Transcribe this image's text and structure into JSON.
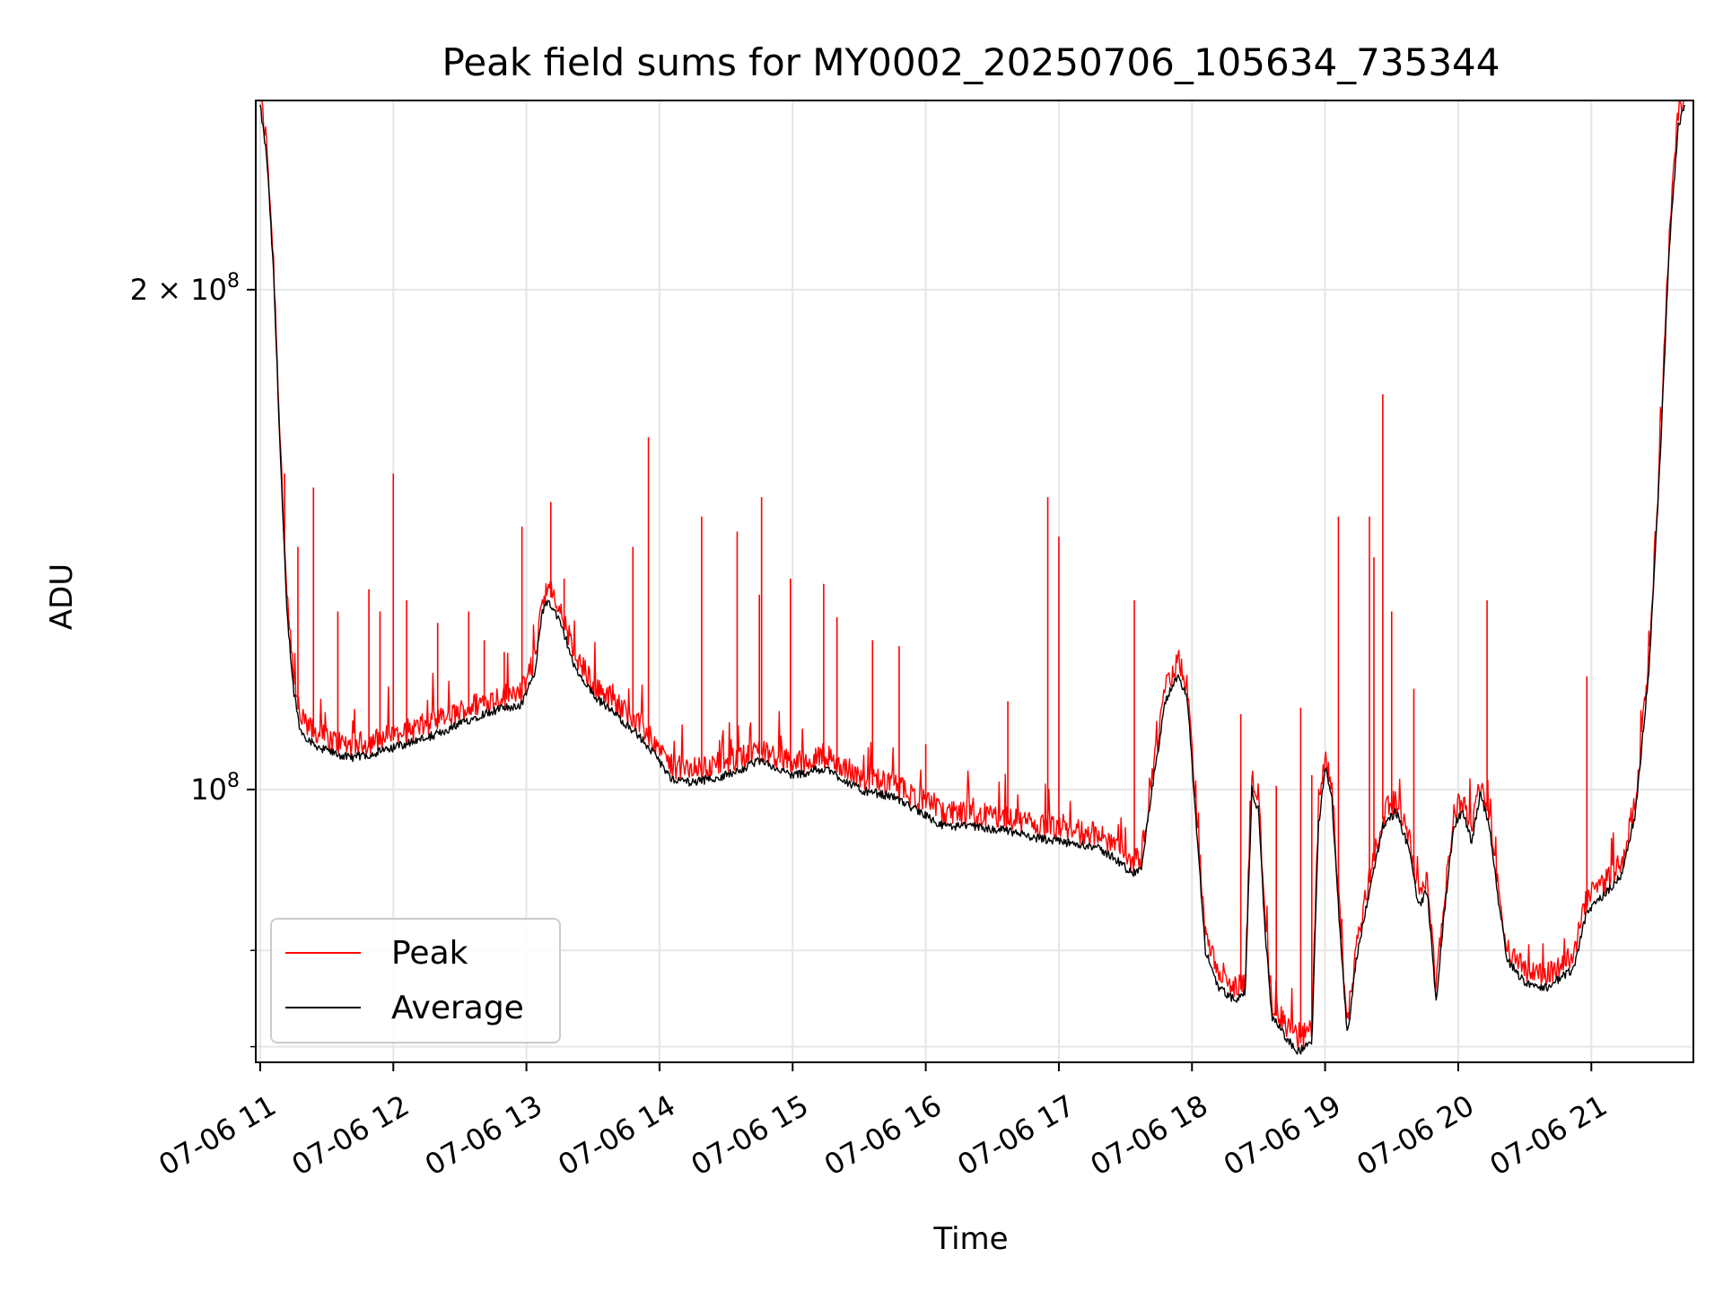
{
  "chart_data": {
    "type": "line",
    "title": "Peak field sums for MY0002_20250706_105634_735344",
    "xlabel": "Time",
    "ylabel": "ADU",
    "y_scale": "log",
    "ylim": [
      68500000,
      260000000
    ],
    "xlim": [
      "2025-07-06T10:58:00",
      "2025-07-06T21:46:00"
    ],
    "grid": true,
    "legend_position": "lower-left",
    "x_ticks": [
      {
        "t": "2025-07-06T11:00",
        "label": "07-06 11"
      },
      {
        "t": "2025-07-06T12:00",
        "label": "07-06 12"
      },
      {
        "t": "2025-07-06T13:00",
        "label": "07-06 13"
      },
      {
        "t": "2025-07-06T14:00",
        "label": "07-06 14"
      },
      {
        "t": "2025-07-06T15:00",
        "label": "07-06 15"
      },
      {
        "t": "2025-07-06T16:00",
        "label": "07-06 16"
      },
      {
        "t": "2025-07-06T17:00",
        "label": "07-06 17"
      },
      {
        "t": "2025-07-06T18:00",
        "label": "07-06 18"
      },
      {
        "t": "2025-07-06T19:00",
        "label": "07-06 19"
      },
      {
        "t": "2025-07-06T20:00",
        "label": "07-06 20"
      },
      {
        "t": "2025-07-06T21:00",
        "label": "07-06 21"
      }
    ],
    "y_major_ticks": [
      {
        "value": 100000000,
        "base": "10",
        "exp": "8"
      },
      {
        "value": 200000000,
        "base": "2 × 10",
        "exp": "8"
      }
    ],
    "y_minor_gridlines": [
      70000000,
      80000000
    ],
    "series": [
      {
        "name": "Average",
        "color": "#000000",
        "points": [
          [
            "2025-07-06T11:00",
            258000000
          ],
          [
            "2025-07-06T11:03",
            240000000
          ],
          [
            "2025-07-06T11:06",
            205000000
          ],
          [
            "2025-07-06T11:09",
            160000000
          ],
          [
            "2025-07-06T11:12",
            128000000
          ],
          [
            "2025-07-06T11:15",
            115000000
          ],
          [
            "2025-07-06T11:18",
            108500000
          ],
          [
            "2025-07-06T11:24",
            106500000
          ],
          [
            "2025-07-06T11:30",
            105500000
          ],
          [
            "2025-07-06T11:40",
            104500000
          ],
          [
            "2025-07-06T11:50",
            105000000
          ],
          [
            "2025-07-06T12:00",
            106000000
          ],
          [
            "2025-07-06T12:10",
            107000000
          ],
          [
            "2025-07-06T12:20",
            108000000
          ],
          [
            "2025-07-06T12:30",
            109500000
          ],
          [
            "2025-07-06T12:40",
            111000000
          ],
          [
            "2025-07-06T12:50",
            112000000
          ],
          [
            "2025-07-06T12:58",
            112500000
          ],
          [
            "2025-07-06T13:04",
            118000000
          ],
          [
            "2025-07-06T13:07",
            128000000
          ],
          [
            "2025-07-06T13:10",
            130000000
          ],
          [
            "2025-07-06T13:14",
            127000000
          ],
          [
            "2025-07-06T13:18",
            123000000
          ],
          [
            "2025-07-06T13:22",
            118000000
          ],
          [
            "2025-07-06T13:30",
            114000000
          ],
          [
            "2025-07-06T13:40",
            111000000
          ],
          [
            "2025-07-06T13:50",
            108000000
          ],
          [
            "2025-07-06T14:00",
            104000000
          ],
          [
            "2025-07-06T14:05",
            101500000
          ],
          [
            "2025-07-06T14:15",
            101000000
          ],
          [
            "2025-07-06T14:30",
            102000000
          ],
          [
            "2025-07-06T14:45",
            104000000
          ],
          [
            "2025-07-06T15:00",
            102000000
          ],
          [
            "2025-07-06T15:15",
            103000000
          ],
          [
            "2025-07-06T15:30",
            100000000
          ],
          [
            "2025-07-06T15:45",
            99000000
          ],
          [
            "2025-07-06T16:00",
            96500000
          ],
          [
            "2025-07-06T16:08",
            95000000
          ],
          [
            "2025-07-06T16:20",
            95000000
          ],
          [
            "2025-07-06T16:35",
            94500000
          ],
          [
            "2025-07-06T16:50",
            93500000
          ],
          [
            "2025-07-06T17:00",
            93000000
          ],
          [
            "2025-07-06T17:15",
            92500000
          ],
          [
            "2025-07-06T17:25",
            91000000
          ],
          [
            "2025-07-06T17:33",
            89000000
          ],
          [
            "2025-07-06T17:37",
            89500000
          ],
          [
            "2025-07-06T17:42",
            100000000
          ],
          [
            "2025-07-06T17:48",
            113000000
          ],
          [
            "2025-07-06T17:54",
            117500000
          ],
          [
            "2025-07-06T17:58",
            113000000
          ],
          [
            "2025-07-06T18:02",
            95000000
          ],
          [
            "2025-07-06T18:06",
            80000000
          ],
          [
            "2025-07-06T18:12",
            76000000
          ],
          [
            "2025-07-06T18:20",
            74500000
          ],
          [
            "2025-07-06T18:24",
            75500000
          ],
          [
            "2025-07-06T18:27",
            100000000
          ],
          [
            "2025-07-06T18:30",
            97000000
          ],
          [
            "2025-07-06T18:33",
            82000000
          ],
          [
            "2025-07-06T18:36",
            73000000
          ],
          [
            "2025-07-06T18:42",
            71000000
          ],
          [
            "2025-07-06T18:48",
            69500000
          ],
          [
            "2025-07-06T18:54",
            70500000
          ],
          [
            "2025-07-06T18:57",
            95000000
          ],
          [
            "2025-07-06T19:00",
            103000000
          ],
          [
            "2025-07-06T19:03",
            99000000
          ],
          [
            "2025-07-06T19:06",
            85000000
          ],
          [
            "2025-07-06T19:10",
            71000000
          ],
          [
            "2025-07-06T19:14",
            79000000
          ],
          [
            "2025-07-06T19:20",
            87000000
          ],
          [
            "2025-07-06T19:26",
            95000000
          ],
          [
            "2025-07-06T19:32",
            97000000
          ],
          [
            "2025-07-06T19:38",
            92000000
          ],
          [
            "2025-07-06T19:42",
            85000000
          ],
          [
            "2025-07-06T19:46",
            87000000
          ],
          [
            "2025-07-06T19:50",
            74500000
          ],
          [
            "2025-07-06T19:54",
            85000000
          ],
          [
            "2025-07-06T19:58",
            95000000
          ],
          [
            "2025-07-06T20:02",
            97000000
          ],
          [
            "2025-07-06T20:06",
            93000000
          ],
          [
            "2025-07-06T20:10",
            99500000
          ],
          [
            "2025-07-06T20:14",
            95000000
          ],
          [
            "2025-07-06T20:18",
            86000000
          ],
          [
            "2025-07-06T20:22",
            79000000
          ],
          [
            "2025-07-06T20:30",
            76500000
          ],
          [
            "2025-07-06T20:40",
            76000000
          ],
          [
            "2025-07-06T20:46",
            77000000
          ],
          [
            "2025-07-06T20:52",
            78000000
          ],
          [
            "2025-07-06T20:58",
            84500000
          ],
          [
            "2025-07-06T21:06",
            86500000
          ],
          [
            "2025-07-06T21:14",
            89000000
          ],
          [
            "2025-07-06T21:20",
            97000000
          ],
          [
            "2025-07-06T21:26",
            118000000
          ],
          [
            "2025-07-06T21:31",
            158000000
          ],
          [
            "2025-07-06T21:35",
            210000000
          ],
          [
            "2025-07-06T21:39",
            250000000
          ],
          [
            "2025-07-06T21:42",
            259000000
          ]
        ]
      },
      {
        "name": "Peak",
        "color": "#ff0000",
        "noise_fraction": 0.035,
        "spikes": [
          [
            "2025-07-06T11:11",
            155000000
          ],
          [
            "2025-07-06T11:17",
            140000000
          ],
          [
            "2025-07-06T11:24",
            152000000
          ],
          [
            "2025-07-06T11:35",
            128000000
          ],
          [
            "2025-07-06T11:49",
            132000000
          ],
          [
            "2025-07-06T11:54",
            128000000
          ],
          [
            "2025-07-06T12:00",
            155000000
          ],
          [
            "2025-07-06T12:06",
            130000000
          ],
          [
            "2025-07-06T12:20",
            126000000
          ],
          [
            "2025-07-06T12:34",
            128000000
          ],
          [
            "2025-07-06T12:41",
            123000000
          ],
          [
            "2025-07-06T12:50",
            121000000
          ],
          [
            "2025-07-06T12:58",
            144000000
          ],
          [
            "2025-07-06T13:11",
            149000000
          ],
          [
            "2025-07-06T13:17",
            134000000
          ],
          [
            "2025-07-06T13:48",
            140000000
          ],
          [
            "2025-07-06T13:55",
            163000000
          ],
          [
            "2025-07-06T14:19",
            146000000
          ],
          [
            "2025-07-06T14:35",
            143000000
          ],
          [
            "2025-07-06T14:45",
            131000000
          ],
          [
            "2025-07-06T14:46",
            150000000
          ],
          [
            "2025-07-06T14:59",
            134000000
          ],
          [
            "2025-07-06T15:14",
            133000000
          ],
          [
            "2025-07-06T15:20",
            127000000
          ],
          [
            "2025-07-06T15:36",
            123000000
          ],
          [
            "2025-07-06T15:48",
            122000000
          ],
          [
            "2025-07-06T16:00",
            106500000
          ],
          [
            "2025-07-06T16:37",
            113000000
          ],
          [
            "2025-07-06T16:55",
            150000000
          ],
          [
            "2025-07-06T17:00",
            142000000
          ],
          [
            "2025-07-06T17:34",
            130000000
          ],
          [
            "2025-07-06T18:22",
            111000000
          ],
          [
            "2025-07-06T18:38",
            100500000
          ],
          [
            "2025-07-06T18:49",
            112000000
          ],
          [
            "2025-07-06T18:54",
            102000000
          ],
          [
            "2025-07-06T19:06",
            146000000
          ],
          [
            "2025-07-06T19:20",
            146000000
          ],
          [
            "2025-07-06T19:22",
            138000000
          ],
          [
            "2025-07-06T19:26",
            173000000
          ],
          [
            "2025-07-06T19:30",
            128000000
          ],
          [
            "2025-07-06T19:40",
            115000000
          ],
          [
            "2025-07-06T20:13",
            130000000
          ],
          [
            "2025-07-06T20:58",
            117000000
          ]
        ]
      }
    ]
  }
}
